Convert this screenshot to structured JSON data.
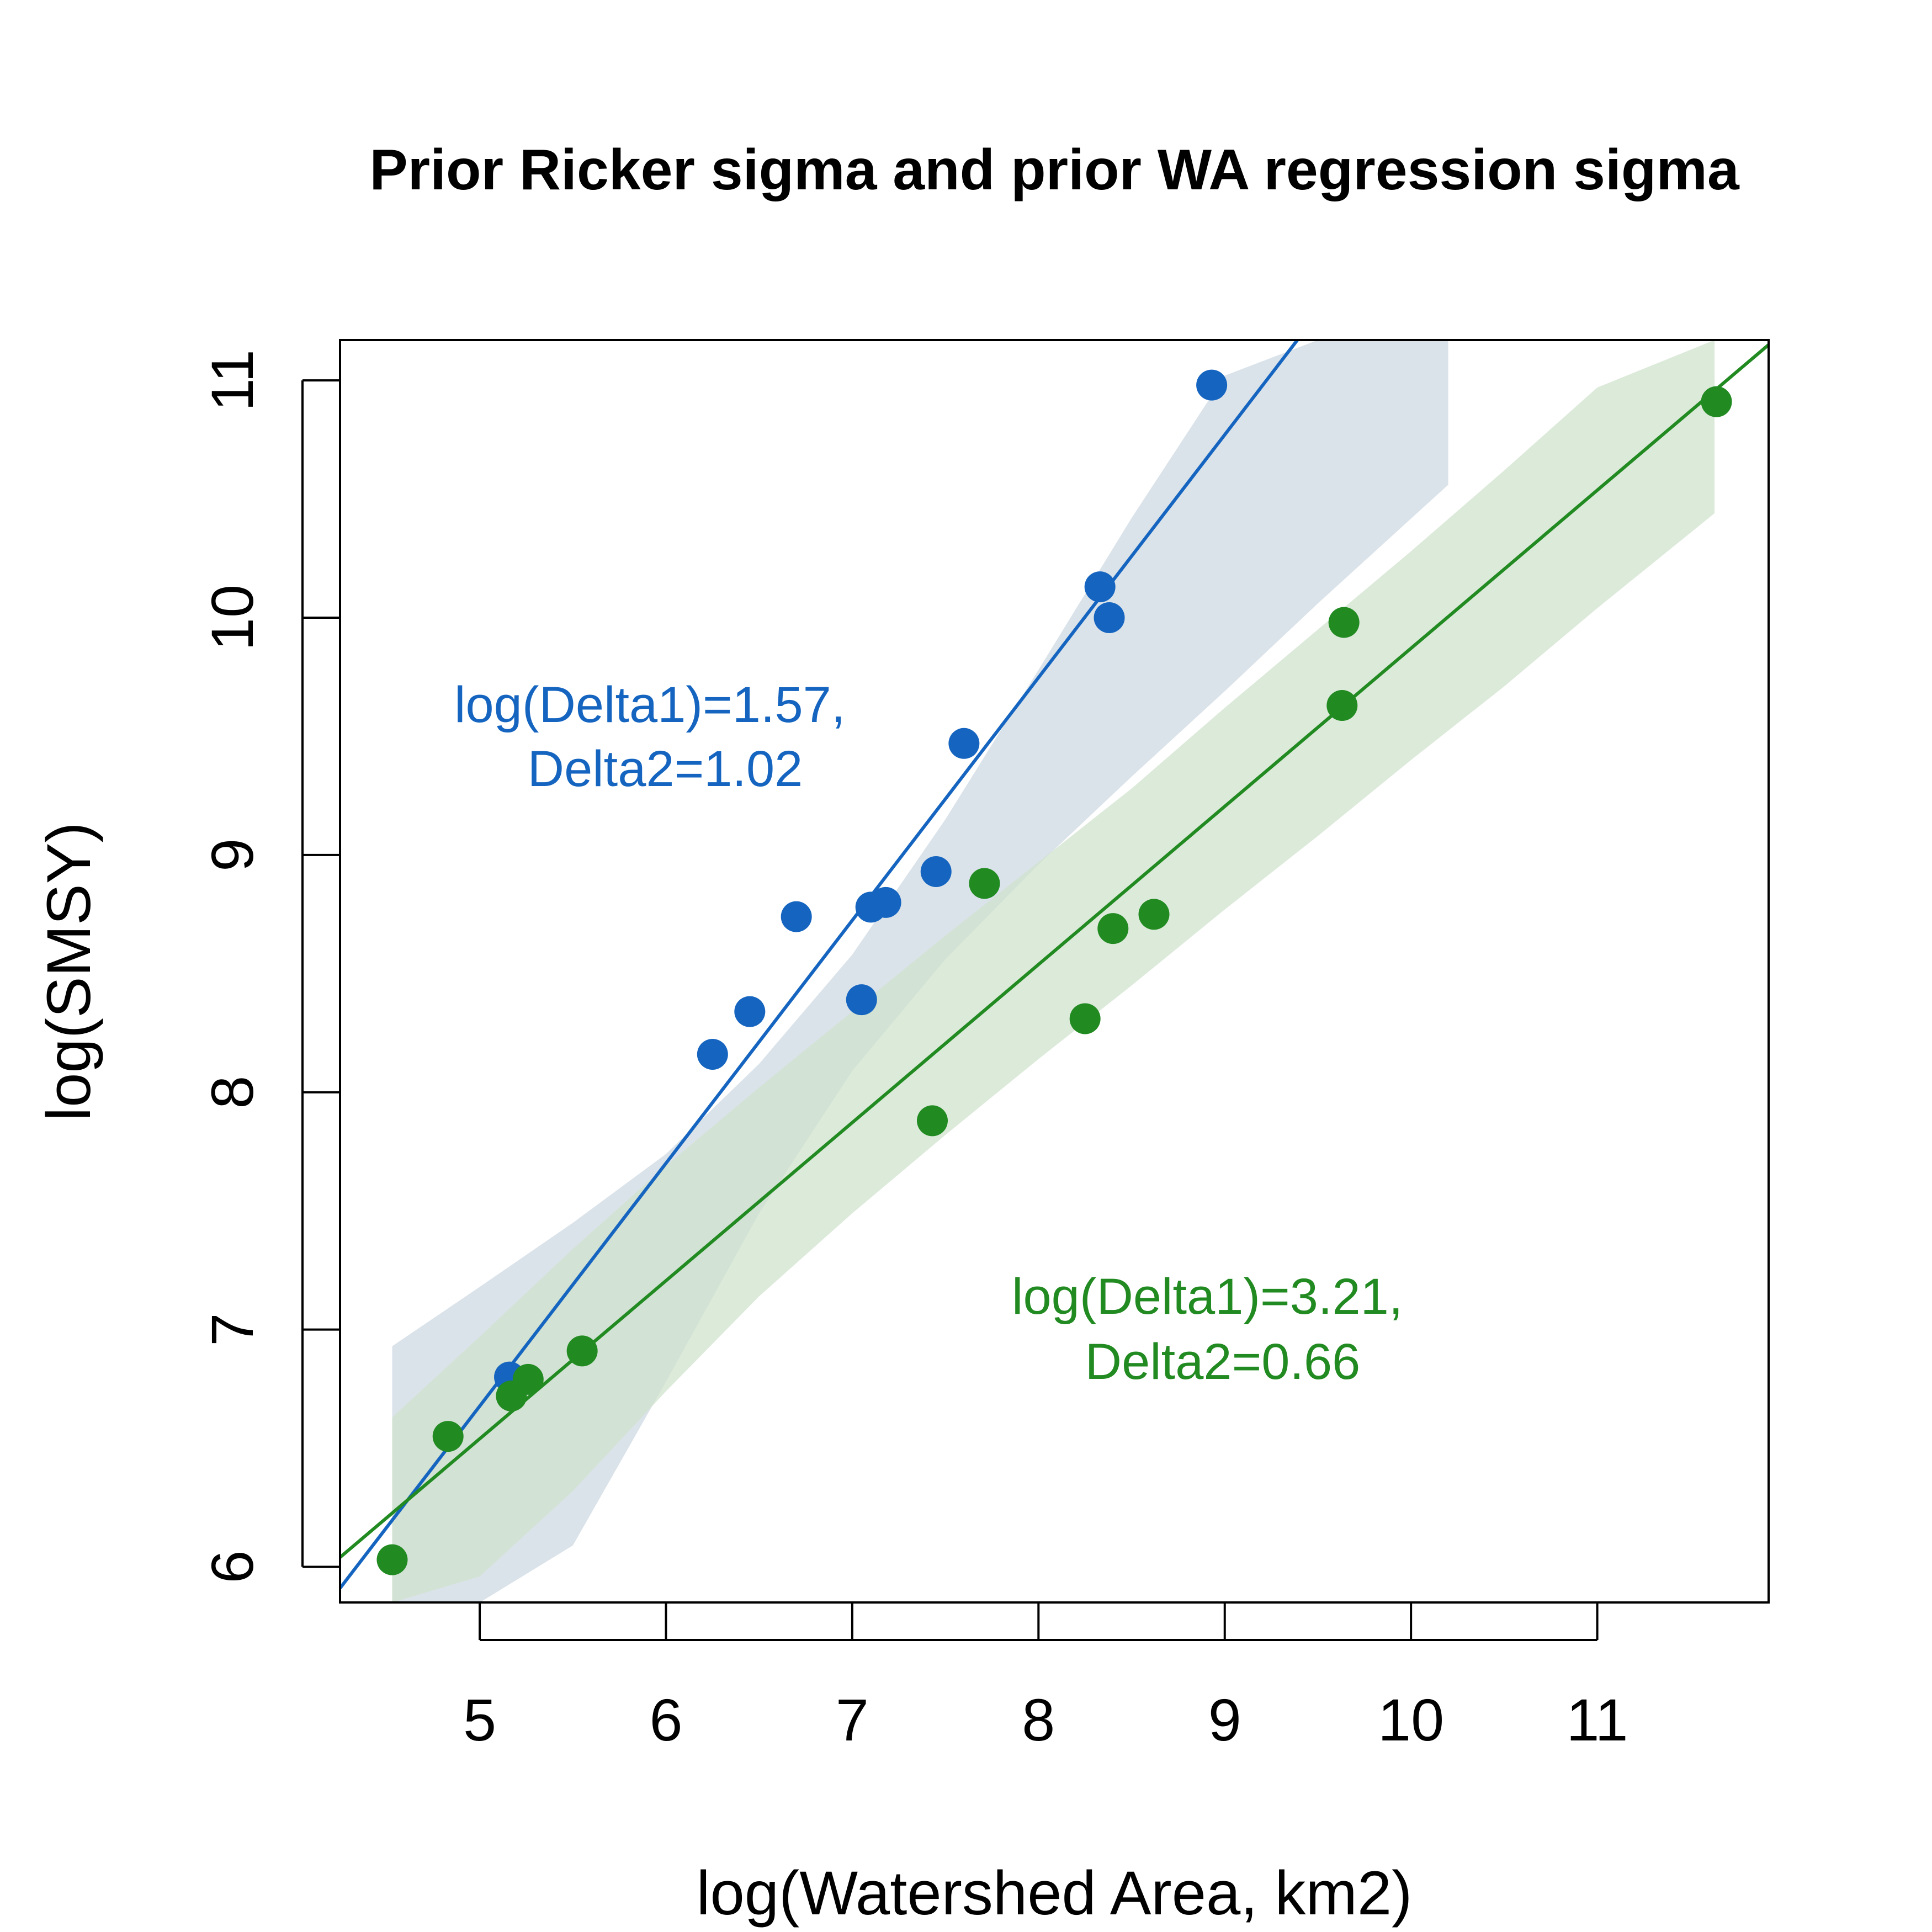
{
  "chart_data": {
    "type": "scatter",
    "title": "Prior Ricker sigma and prior WA regression sigma",
    "xlabel": "log(Watershed Area, km2)",
    "ylabel": "log(SMSY)",
    "xlim": [
      4.25,
      11.92
    ],
    "ylim": [
      5.85,
      11.17
    ],
    "xticks": [
      5,
      6,
      7,
      8,
      9,
      10,
      11
    ],
    "yticks": [
      6,
      7,
      8,
      9,
      10,
      11
    ],
    "grid": false,
    "legend": "none",
    "series": [
      {
        "color": "#1565C0",
        "band_color": "#cdd8e2",
        "points": [
          [
            5.16,
            6.8
          ],
          [
            6.25,
            8.16
          ],
          [
            6.45,
            8.34
          ],
          [
            6.7,
            8.74
          ],
          [
            7.05,
            8.39
          ],
          [
            7.1,
            8.78
          ],
          [
            7.18,
            8.8
          ],
          [
            7.45,
            8.93
          ],
          [
            7.6,
            9.47
          ],
          [
            8.33,
            10.13
          ],
          [
            8.38,
            10.0
          ],
          [
            8.93,
            10.98
          ]
        ],
        "fit_line": [
          [
            4.25,
            5.91
          ],
          [
            9.39,
            11.17
          ]
        ],
        "band": {
          "x": [
            4.53,
            5.0,
            5.5,
            6.0,
            6.5,
            7.0,
            7.5,
            8.0,
            8.5,
            9.0,
            9.5,
            10.2
          ],
          "upper": [
            6.93,
            7.18,
            7.45,
            7.74,
            8.12,
            8.58,
            9.15,
            9.78,
            10.42,
            11.02,
            11.17,
            11.17
          ],
          "lower": [
            5.85,
            5.85,
            6.09,
            6.78,
            7.49,
            8.09,
            8.56,
            8.96,
            9.33,
            9.69,
            10.06,
            10.56
          ]
        },
        "annotation": [
          "log(Delta1)=1.57,",
          "Delta2=1.02"
        ]
      },
      {
        "color": "#218A21",
        "band_color": "#cfe2cc",
        "points": [
          [
            4.53,
            6.03
          ],
          [
            4.83,
            6.55
          ],
          [
            5.17,
            6.72
          ],
          [
            5.26,
            6.79
          ],
          [
            5.55,
            6.91
          ],
          [
            7.43,
            7.88
          ],
          [
            7.71,
            8.88
          ],
          [
            8.25,
            8.31
          ],
          [
            8.4,
            8.69
          ],
          [
            8.62,
            8.75
          ],
          [
            9.63,
            9.63
          ],
          [
            9.64,
            9.98
          ],
          [
            11.64,
            10.91
          ]
        ],
        "fit_line": [
          [
            4.25,
            6.04
          ],
          [
            11.92,
            11.15
          ]
        ],
        "band": {
          "x": [
            4.53,
            5.0,
            5.5,
            6.0,
            6.5,
            7.0,
            7.5,
            8.0,
            8.5,
            9.0,
            9.5,
            10.0,
            10.5,
            11.0,
            11.63
          ],
          "upper": [
            6.63,
            6.97,
            7.34,
            7.69,
            8.02,
            8.34,
            8.66,
            8.97,
            9.28,
            9.62,
            9.95,
            10.28,
            10.62,
            10.97,
            11.17
          ],
          "lower": [
            5.85,
            5.96,
            6.32,
            6.74,
            7.14,
            7.49,
            7.82,
            8.14,
            8.45,
            8.77,
            9.08,
            9.4,
            9.71,
            10.04,
            10.44
          ]
        },
        "annotation": [
          "log(Delta1)=3.21,",
          "Delta2=0.66"
        ]
      }
    ]
  }
}
